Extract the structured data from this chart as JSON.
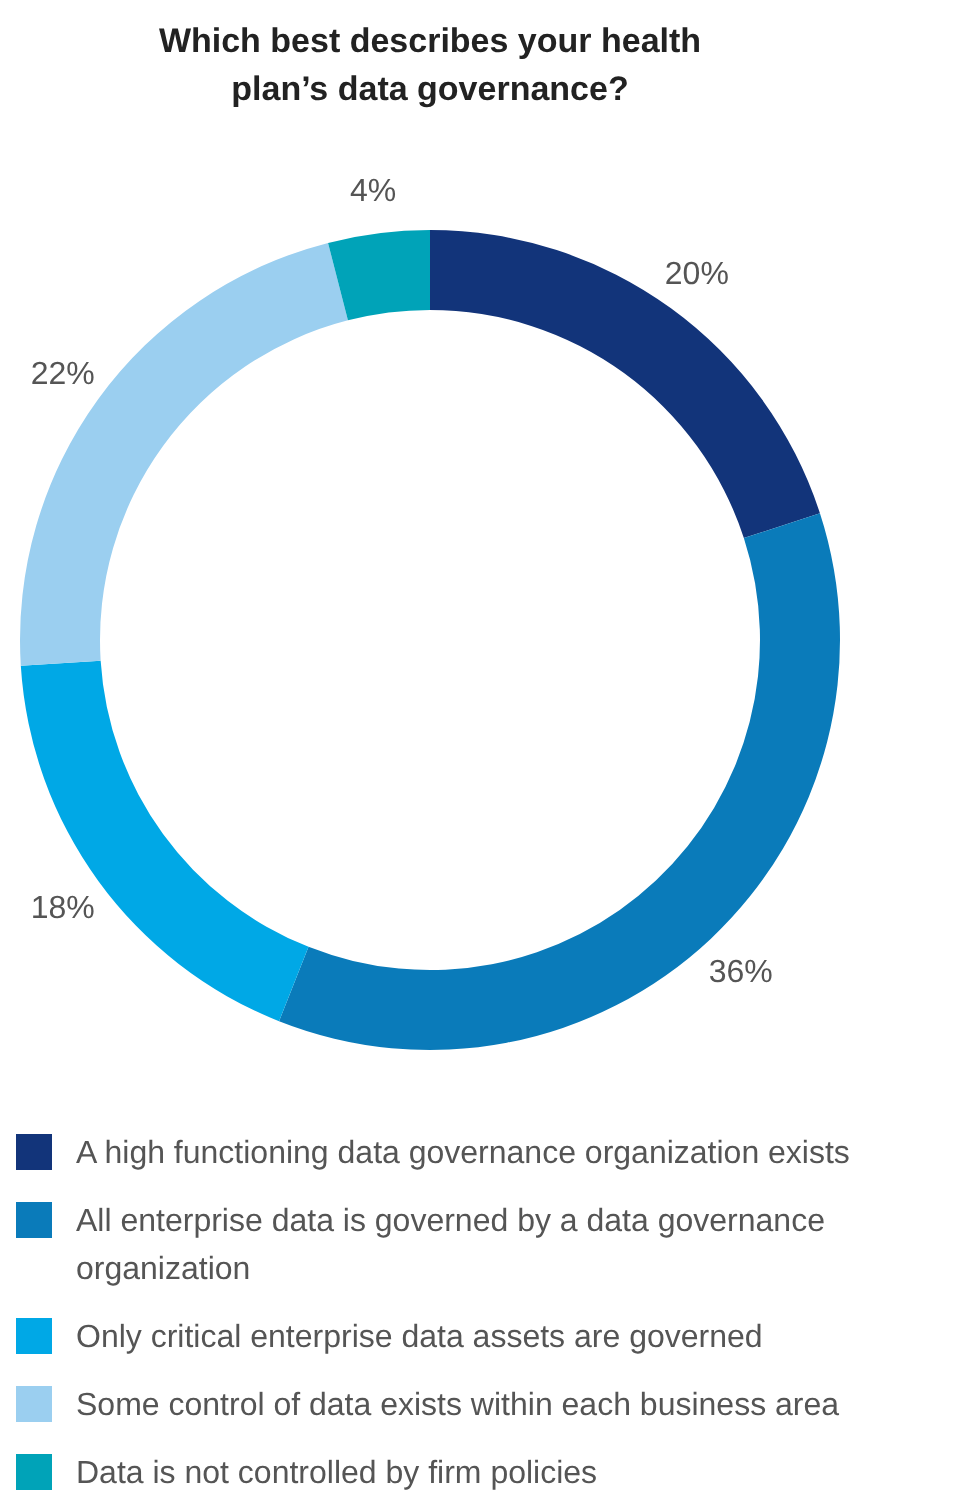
{
  "chart_data": {
    "type": "donut",
    "title": "Which best describes your health plan’s data governance?",
    "categories": [
      "A high functioning data governance organization exists",
      "All enterprise data is governed by a data governance organization",
      "Only critical enterprise data assets are governed",
      "Some control of data exists within each business area",
      "Data is not controlled by firm policies"
    ],
    "values": [
      20,
      36,
      18,
      22,
      4
    ],
    "value_labels": [
      "20%",
      "36%",
      "18%",
      "22%",
      "4%"
    ],
    "colors": [
      "#12347a",
      "#0a7bba",
      "#00a8e6",
      "#9bcff0",
      "#00a3b8"
    ],
    "legend": "bottom"
  }
}
